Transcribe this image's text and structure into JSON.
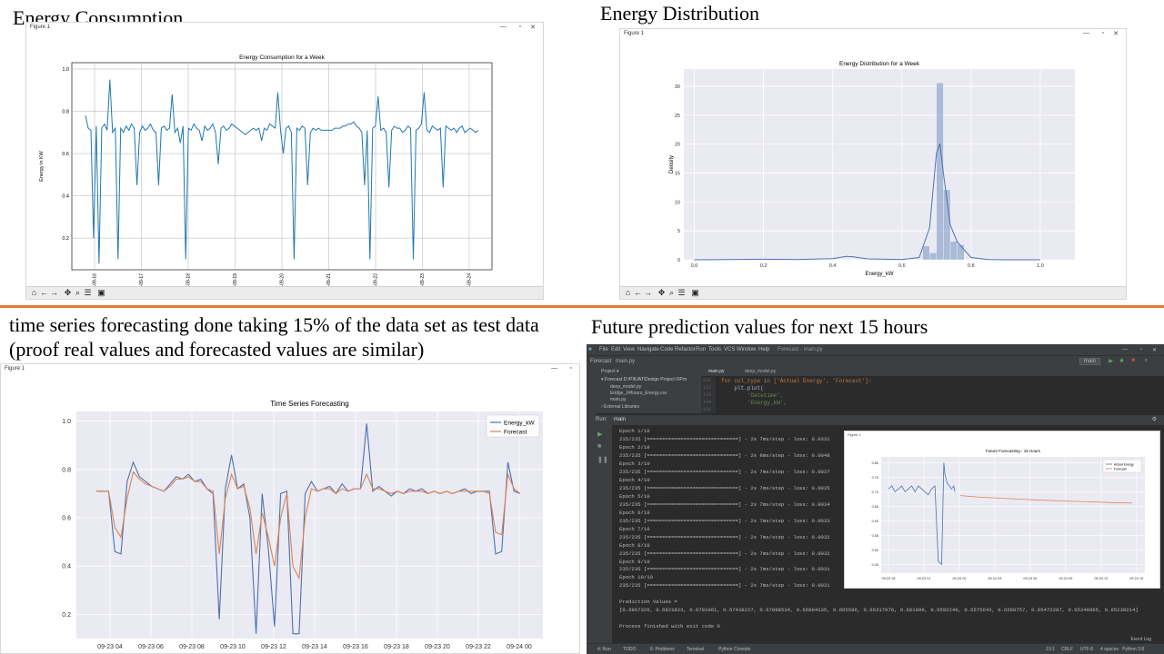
{
  "headings": {
    "q1": "Energy Consumption",
    "q2": "Energy Distribution",
    "q3": "time series forecasting done taking 15% of the data set as test data (proof real values and forecasted values are similar)",
    "q4": "Future prediction values for next 15 hours"
  },
  "figure_window_title": "Figure 1",
  "window_controls": {
    "minimize": "—",
    "maximize": "▫",
    "close": "✕"
  },
  "colors": {
    "line_blue": "#1f77b4",
    "seaborn_blue": "#4c72b0",
    "seaborn_orange": "#dd8452",
    "seaborn_bg": "#eaeaf2",
    "divider": "#e07a3a"
  },
  "chart_data": [
    {
      "type": "line",
      "title": "Energy Consumption for a Week",
      "ylabel": "Energy in KW",
      "xlabel": "",
      "x_ticks": [
        "2020-09-16",
        "2020-09-17",
        "2020-09-18",
        "2020-09-19",
        "2020-09-20",
        "2020-09-21",
        "2020-09-22",
        "2020-09-23",
        "2020-09-24"
      ],
      "y_ticks": [
        0.2,
        0.4,
        0.6,
        0.8,
        1.0
      ],
      "ylim": [
        0.05,
        1.03
      ],
      "grid": true,
      "series": [
        {
          "values": [
            0.78,
            0.72,
            0.71,
            0.2,
            0.73,
            0.08,
            0.72,
            0.74,
            0.71,
            0.95,
            0.7,
            0.72,
            0.1,
            0.72,
            0.7,
            0.73,
            0.71,
            0.74,
            0.72,
            0.45,
            0.7,
            0.73,
            0.71,
            0.72,
            0.74,
            0.71,
            0.7,
            0.45,
            0.72,
            0.73,
            0.71,
            0.72,
            0.88,
            0.7,
            0.72,
            0.65,
            0.73,
            0.1,
            0.72,
            0.71,
            0.74,
            0.72,
            0.71,
            0.66,
            0.73,
            0.71,
            0.72,
            0.74,
            0.7,
            0.55,
            0.72,
            0.73,
            0.71,
            0.72,
            0.74,
            0.73,
            0.72,
            0.71,
            0.7,
            0.69,
            0.7,
            0.71,
            0.72,
            0.71,
            0.72,
            0.66,
            0.72,
            0.71,
            0.74,
            0.73,
            0.72,
            0.89,
            0.71,
            0.6,
            0.72,
            0.73,
            0.7,
            0.1,
            0.72,
            0.71,
            0.73,
            0.72,
            0.45,
            0.7,
            0.72,
            0.71,
            0.72,
            0.71,
            0.71,
            0.71,
            0.71,
            0.71,
            0.72,
            0.72,
            0.72,
            0.73,
            0.73,
            0.74,
            0.74,
            0.75,
            0.73,
            0.72,
            0.7,
            0.45,
            0.71,
            0.1,
            0.72,
            0.73,
            0.87,
            0.71,
            0.72,
            0.7,
            0.44,
            0.71,
            0.73,
            0.72,
            0.72,
            0.7,
            0.71,
            0.73,
            0.72,
            0.1,
            0.71,
            0.72,
            0.74,
            0.89,
            0.71,
            0.7,
            0.73,
            0.72,
            0.71,
            0.72,
            0.44,
            0.73,
            0.72,
            0.71,
            0.72,
            0.7,
            0.72,
            0.73,
            0.7,
            0.71,
            0.72,
            0.71,
            0.7,
            0.71
          ]
        }
      ]
    },
    {
      "type": "histogram",
      "title": "Energy Distribution for a Week",
      "xlabel": "Energy_kW",
      "ylabel": "Density",
      "x_ticks": [
        0.0,
        0.2,
        0.4,
        0.6,
        0.8,
        1.0
      ],
      "y_ticks": [
        0,
        5,
        10,
        15,
        20,
        25,
        30
      ],
      "xlim": [
        -0.03,
        1.1
      ],
      "ylim": [
        0,
        33
      ],
      "bin_edges": [
        0.66,
        0.68,
        0.7,
        0.72,
        0.74,
        0.76,
        0.78
      ],
      "bin_heights": [
        2.4,
        1.2,
        30.6,
        12.1,
        3.2,
        2.6
      ],
      "kde_x": [
        0.0,
        0.1,
        0.2,
        0.3,
        0.4,
        0.44,
        0.46,
        0.5,
        0.6,
        0.65,
        0.68,
        0.7,
        0.71,
        0.72,
        0.74,
        0.76,
        0.8,
        0.85,
        0.9,
        1.0
      ],
      "kde_y": [
        0,
        0.05,
        0.1,
        0.05,
        0.2,
        0.6,
        0.5,
        0.15,
        0.05,
        0.4,
        5.5,
        18.5,
        20.1,
        15.0,
        6.0,
        3.1,
        0.4,
        0.05,
        0,
        0
      ]
    },
    {
      "type": "line",
      "title": "Time Series Forecasting",
      "xlabel": "",
      "ylabel": "",
      "x_ticks": [
        "09-23 04",
        "09-23 06",
        "09-23 08",
        "09-23 10",
        "09-23 12",
        "09-23 14",
        "09-23 16",
        "09-23 18",
        "09-23 20",
        "09-23 22",
        "09-24 00"
      ],
      "y_ticks": [
        0.2,
        0.4,
        0.6,
        0.8,
        1.0
      ],
      "ylim": [
        0.1,
        1.04
      ],
      "grid": true,
      "legend": "top-right",
      "series": [
        {
          "name": "Energy_kW",
          "values": [
            0.71,
            0.71,
            0.71,
            0.46,
            0.45,
            0.75,
            0.83,
            0.77,
            0.75,
            0.73,
            0.72,
            0.71,
            0.74,
            0.77,
            0.76,
            0.78,
            0.75,
            0.76,
            0.72,
            0.7,
            0.18,
            0.72,
            0.86,
            0.72,
            0.74,
            0.6,
            0.12,
            0.7,
            0.47,
            0.15,
            0.7,
            0.71,
            0.12,
            0.12,
            0.7,
            0.75,
            0.71,
            0.72,
            0.73,
            0.7,
            0.74,
            0.71,
            0.72,
            0.72,
            0.99,
            0.71,
            0.73,
            0.71,
            0.69,
            0.71,
            0.7,
            0.72,
            0.71,
            0.72,
            0.7,
            0.71,
            0.7,
            0.71,
            0.7,
            0.71,
            0.72,
            0.7,
            0.71,
            0.71,
            0.71,
            0.45,
            0.46,
            0.83,
            0.71,
            0.7
          ]
        },
        {
          "name": "Forecast",
          "values": [
            0.71,
            0.71,
            0.71,
            0.56,
            0.52,
            0.68,
            0.79,
            0.76,
            0.74,
            0.73,
            0.72,
            0.71,
            0.73,
            0.76,
            0.76,
            0.77,
            0.75,
            0.75,
            0.72,
            0.71,
            0.45,
            0.68,
            0.78,
            0.72,
            0.73,
            0.64,
            0.45,
            0.62,
            0.52,
            0.4,
            0.6,
            0.7,
            0.4,
            0.35,
            0.6,
            0.72,
            0.71,
            0.72,
            0.72,
            0.7,
            0.72,
            0.71,
            0.72,
            0.72,
            0.78,
            0.72,
            0.72,
            0.71,
            0.7,
            0.71,
            0.7,
            0.71,
            0.71,
            0.71,
            0.7,
            0.71,
            0.7,
            0.71,
            0.7,
            0.71,
            0.71,
            0.71,
            0.71,
            0.71,
            0.7,
            0.54,
            0.53,
            0.78,
            0.72,
            0.7
          ]
        }
      ]
    },
    {
      "type": "line",
      "title": "Future Forecasting - 15 Hours",
      "xlabel": "",
      "ylabel": "",
      "x_ticks": [
        "09-23 18",
        "09-23 21",
        "09-24 00",
        "09-24 03",
        "09-24 06",
        "09-24 09",
        "09-24 12",
        "09-24 15"
      ],
      "y_ticks": [
        0.45,
        0.5,
        0.55,
        0.6,
        0.65,
        0.7,
        0.75,
        0.8
      ],
      "ylim": [
        0.42,
        0.82
      ],
      "grid": true,
      "legend": "top-right",
      "series": [
        {
          "name": "Actual Energy",
          "x": [
            0,
            0.3,
            0.6,
            0.9,
            1.2,
            1.5,
            1.8,
            2.1,
            2.4,
            2.7,
            3.0,
            3.3,
            3.6,
            3.9,
            4.2,
            4.5,
            4.8,
            5.0,
            5.1,
            5.3,
            5.5,
            5.7,
            5.9,
            6.0
          ],
          "values": [
            0.71,
            0.72,
            0.7,
            0.71,
            0.72,
            0.7,
            0.71,
            0.72,
            0.7,
            0.72,
            0.71,
            0.7,
            0.69,
            0.71,
            0.72,
            0.46,
            0.45,
            0.8,
            0.76,
            0.73,
            0.72,
            0.71,
            0.72,
            0.7
          ]
        },
        {
          "name": "Forecast",
          "x": [
            6.5,
            8,
            10,
            12,
            14,
            16,
            18,
            20,
            22
          ],
          "values": [
            0.6867326,
            0.6821823,
            0.6781061,
            0.67438227,
            0.67098534,
            0.66804135,
            0.665596,
            0.66317976,
            0.661089
          ]
        }
      ]
    }
  ],
  "ide": {
    "menu": [
      "File",
      "Edit",
      "View",
      "Navigate",
      "Code",
      "Refactor",
      "Run",
      "Tools",
      "VCS",
      "Window",
      "Help"
    ],
    "window_title": "Forecast - main.py",
    "project_name": "Forecast",
    "nav_file": "main.py",
    "run_config": "main",
    "editor_tabs": [
      "main.py",
      "deep_model.py"
    ],
    "project_tree": [
      "Project ▾",
      "▾ Forecast  D:\\PIIUAT\\Design Project II\\Pro",
      "deep_model.py",
      "Eridge_24hours_Energy.csv",
      "main.py",
      "› External Libraries"
    ],
    "code_lines": [
      "for col_type in ['Actual Energy', 'Forecast']:",
      "    plt.plot(",
      "        'Datetime',",
      "        'Energy_kW',"
    ],
    "line_numbers": [
      "131",
      "132",
      "133",
      "134",
      "135"
    ],
    "run_label": "Run:",
    "run_tab": "main",
    "console_lines": [
      "Epoch 1/10",
      "235/235 [==============================] - 2s 7ms/step - loss: 0.0331",
      "Epoch 2/10",
      "235/235 [==============================] - 2s 8ms/step - loss: 0.0048",
      "Epoch 3/10",
      "235/235 [==============================] - 2s 7ms/step - loss: 0.0037",
      "Epoch 4/10",
      "235/235 [==============================] - 2s 7ms/step - loss: 0.0035",
      "Epoch 5/10",
      "235/235 [==============================] - 2s 7ms/step - loss: 0.0034",
      "Epoch 6/10",
      "235/235 [==============================] - 2s 7ms/step - loss: 0.0033",
      "Epoch 7/10",
      "235/235 [==============================] - 2s 7ms/step - loss: 0.0032",
      "Epoch 8/10",
      "235/235 [==============================] - 2s 7ms/step - loss: 0.0032",
      "Epoch 9/10",
      "235/235 [==============================] - 2s 7ms/step - loss: 0.0031",
      "Epoch 10/10",
      "235/235 [==============================] - 2s 7ms/step - loss: 0.0031",
      "",
      "Prediction Values =",
      "[0.6867326, 0.6821823, 0.6781061, 0.67438227, 0.67098534, 0.66804135, 0.665596, 0.66317976, 0.661089, 0.6592249, 0.6575643, 0.6560757, 0.65472287, 0.65348965, 0.65238214]",
      "",
      "Process finished with exit code 0"
    ],
    "status_tabs": [
      "4: Run",
      "TODO",
      "6: Problems",
      "Terminal",
      "Python Console"
    ],
    "status_right": [
      "19:1",
      "CRLF",
      "UTF-8",
      "4 spaces",
      "Python 3.8"
    ],
    "event_log": "Event Log"
  }
}
